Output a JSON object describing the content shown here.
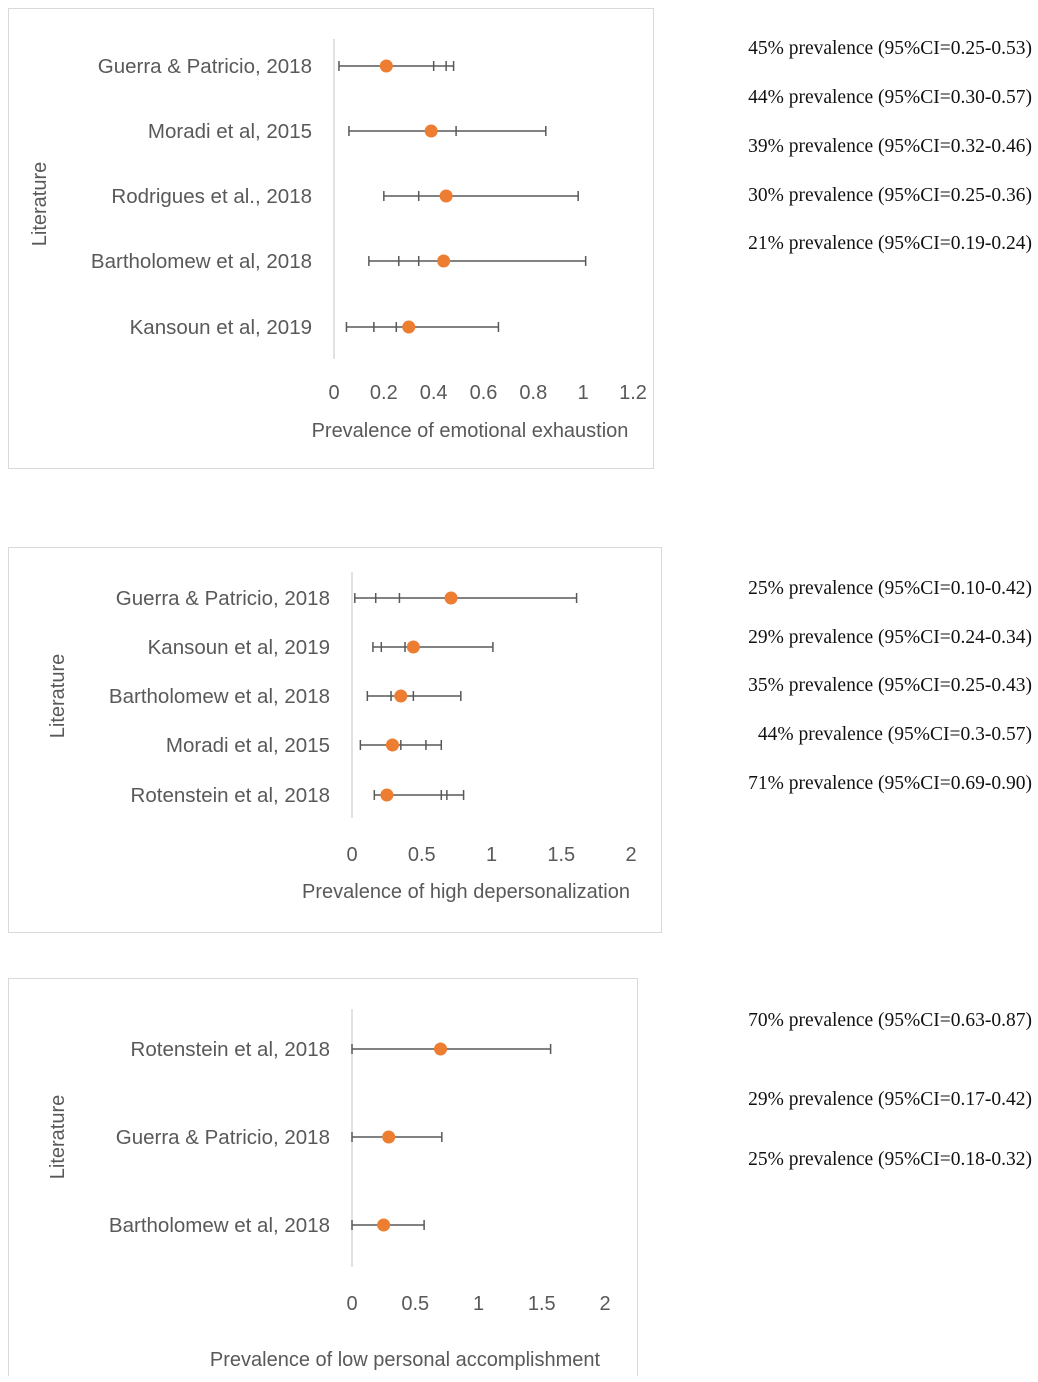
{
  "colors": {
    "marker": "#ED7D31",
    "error_bar": "#595959",
    "axis": "#d9d9d9",
    "text": "#595959",
    "note": "#111111"
  },
  "chart_data": [
    {
      "type": "scatter",
      "orientation": "horizontal",
      "ylabel": "Literature",
      "xlabel": "Prevalence of emotional exhaustion",
      "xlim": [
        0,
        1.2
      ],
      "xticks": [
        "0",
        "0.2",
        "0.4",
        "0.6",
        "0.8",
        "1",
        "1.2"
      ],
      "grid": false,
      "legend": "none",
      "categories": [
        "Guerra & Patricio, 2018",
        "Moradi et al, 2015",
        "Rodrigues et al., 2018",
        "Bartholomew et al, 2018",
        "Kansoun et al, 2019"
      ],
      "points": [
        {
          "study": "Guerra & Patricio, 2018",
          "value": 0.21,
          "low": 0.02,
          "high": 0.48,
          "ticks": [
            0.4,
            0.45
          ]
        },
        {
          "study": "Moradi et al, 2015",
          "value": 0.39,
          "low": 0.06,
          "high": 0.85,
          "ticks": [
            0.49
          ]
        },
        {
          "study": "Rodrigues et al., 2018",
          "value": 0.45,
          "low": 0.2,
          "high": 0.98,
          "ticks": [
            0.34
          ]
        },
        {
          "study": "Bartholomew et al, 2018",
          "value": 0.44,
          "low": 0.14,
          "high": 1.01,
          "ticks": [
            0.26,
            0.34
          ]
        },
        {
          "study": "Kansoun et al, 2019",
          "value": 0.3,
          "low": 0.05,
          "high": 0.66,
          "ticks": [
            0.16,
            0.25
          ]
        }
      ],
      "annotations": [
        "45% prevalence (95%CI=0.25-0.53)",
        "44% prevalence (95%CI=0.30-0.57)",
        "39% prevalence (95%CI=0.32-0.46)",
        "30% prevalence (95%CI=0.25-0.36)",
        "21% prevalence (95%CI=0.19-0.24)"
      ]
    },
    {
      "type": "scatter",
      "orientation": "horizontal",
      "ylabel": "Literature",
      "xlabel": "Prevalence of high depersonalization",
      "xlim": [
        0,
        2
      ],
      "xticks": [
        "0",
        "0.5",
        "1",
        "1.5",
        "2"
      ],
      "grid": false,
      "legend": "none",
      "categories": [
        "Guerra & Patricio, 2018",
        "Kansoun et al, 2019",
        "Bartholomew et al, 2018",
        "Moradi et al, 2015",
        "Rotenstein et al, 2018"
      ],
      "points": [
        {
          "study": "Guerra & Patricio, 2018",
          "value": 0.71,
          "low": 0.02,
          "high": 1.61,
          "ticks": [
            0.17,
            0.34
          ]
        },
        {
          "study": "Kansoun et al, 2019",
          "value": 0.44,
          "low": 0.15,
          "high": 1.01,
          "ticks": [
            0.21,
            0.38
          ]
        },
        {
          "study": "Bartholomew et al, 2018",
          "value": 0.35,
          "low": 0.11,
          "high": 0.78,
          "ticks": [
            0.28,
            0.44
          ]
        },
        {
          "study": "Moradi et al, 2015",
          "value": 0.29,
          "low": 0.06,
          "high": 0.64,
          "ticks": [
            0.35,
            0.53
          ]
        },
        {
          "study": "Rotenstein et al, 2018",
          "value": 0.25,
          "low": 0.16,
          "high": 0.8,
          "ticks": [
            0.64,
            0.68
          ]
        }
      ],
      "annotations": [
        "25% prevalence (95%CI=0.10-0.42)",
        "29% prevalence (95%CI=0.24-0.34)",
        "35% prevalence (95%CI=0.25-0.43)",
        "44% prevalence (95%CI=0.3-0.57)",
        "71% prevalence (95%CI=0.69-0.90)"
      ]
    },
    {
      "type": "scatter",
      "orientation": "horizontal",
      "ylabel": "Literature",
      "xlabel": "Prevalence of low personal accomplishment",
      "xlim": [
        0,
        2
      ],
      "xticks": [
        "0",
        "0.5",
        "1",
        "1.5",
        "2"
      ],
      "grid": false,
      "legend": "none",
      "categories": [
        "Rotenstein et al, 2018",
        "Guerra & Patricio, 2018",
        "Bartholomew et al, 2018"
      ],
      "points": [
        {
          "study": "Rotenstein et al, 2018",
          "value": 0.7,
          "low": 0.0,
          "high": 1.57,
          "ticks": []
        },
        {
          "study": "Guerra & Patricio, 2018",
          "value": 0.29,
          "low": 0.0,
          "high": 0.71,
          "ticks": []
        },
        {
          "study": "Bartholomew et al, 2018",
          "value": 0.25,
          "low": 0.0,
          "high": 0.57,
          "ticks": []
        }
      ],
      "annotations": [
        "70% prevalence (95%CI=0.63-0.87)",
        "29% prevalence (95%CI=0.17-0.42)",
        "25% prevalence (95%CI=0.18-0.32)"
      ]
    }
  ]
}
